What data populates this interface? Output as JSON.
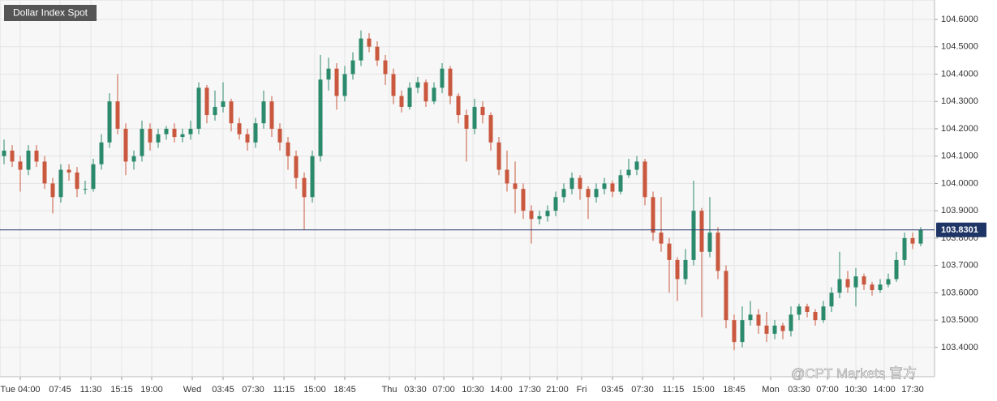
{
  "chart_data": {
    "type": "candlestick",
    "title": "Dollar Index Spot",
    "watermark": "@CPT Markets 官方",
    "up_color": "#2b8a6c",
    "down_color": "#c9583f",
    "grid": true,
    "last_price": 103.8301,
    "open": [
      104.1,
      104.12,
      104.08,
      104.05,
      104.12,
      104.08,
      104.0,
      103.95,
      104.05,
      104.04,
      103.98,
      103.98,
      104.07,
      104.15,
      104.3,
      104.2,
      104.08,
      104.1,
      104.2,
      104.15,
      104.18,
      104.2,
      104.17,
      104.18,
      104.2,
      104.35,
      104.25,
      104.28,
      104.3,
      104.22,
      104.18,
      104.15,
      104.22,
      104.3,
      104.2,
      104.15,
      104.1,
      104.02,
      103.95,
      104.1,
      104.38,
      104.42,
      104.32,
      104.4,
      104.45,
      104.53,
      104.5,
      104.45,
      104.4,
      104.32,
      104.28,
      104.35,
      104.37,
      104.3,
      104.35,
      104.42,
      104.32,
      104.25,
      104.2,
      104.28,
      104.25,
      104.15,
      104.05,
      104.0,
      103.98,
      103.9,
      103.87,
      103.88,
      103.9,
      103.95,
      103.98,
      104.02,
      103.98,
      103.95,
      103.98,
      104.0,
      103.97,
      104.03,
      104.05,
      104.08,
      103.95,
      103.82,
      103.78,
      103.72,
      103.65,
      103.72,
      103.9,
      103.75,
      103.82,
      103.68,
      103.5,
      103.42,
      103.5,
      103.52,
      103.48,
      103.45,
      103.48,
      103.46,
      103.52,
      103.55,
      103.53,
      103.5,
      103.55,
      103.6,
      103.65,
      103.62,
      103.66,
      103.63,
      103.61,
      103.63,
      103.65,
      103.72,
      103.8,
      103.78
    ],
    "high": [
      104.16,
      104.14,
      104.1,
      104.14,
      104.14,
      104.1,
      104.02,
      104.07,
      104.07,
      104.06,
      104.01,
      104.09,
      104.18,
      104.33,
      104.4,
      104.22,
      104.12,
      104.23,
      104.22,
      104.2,
      104.21,
      104.22,
      104.2,
      104.23,
      104.37,
      104.36,
      104.34,
      104.37,
      104.31,
      104.24,
      104.2,
      104.24,
      104.34,
      104.32,
      104.22,
      104.17,
      104.12,
      104.04,
      104.12,
      104.47,
      104.46,
      104.44,
      104.43,
      104.48,
      104.56,
      104.55,
      104.52,
      104.47,
      104.42,
      104.34,
      104.37,
      104.39,
      104.38,
      104.37,
      104.44,
      104.43,
      104.33,
      104.27,
      104.31,
      104.3,
      104.26,
      104.17,
      104.12,
      104.08,
      104.0,
      103.92,
      103.9,
      103.92,
      103.97,
      104.0,
      104.04,
      104.03,
      103.99,
      104.0,
      104.02,
      104.01,
      104.05,
      104.09,
      104.1,
      104.09,
      103.97,
      103.95,
      103.8,
      103.73,
      103.76,
      104.01,
      103.91,
      103.95,
      103.84,
      103.7,
      103.52,
      103.55,
      103.57,
      103.54,
      103.53,
      103.5,
      103.49,
      103.55,
      103.56,
      103.56,
      103.54,
      103.57,
      103.62,
      103.75,
      103.68,
      103.69,
      103.67,
      103.64,
      103.65,
      103.67,
      103.75,
      103.82,
      103.82,
      103.84
    ],
    "low": [
      104.07,
      104.06,
      103.97,
      104.03,
      104.06,
      103.98,
      103.89,
      103.93,
      104.01,
      103.95,
      103.96,
      103.97,
      104.05,
      104.13,
      104.18,
      104.03,
      104.05,
      104.08,
      104.12,
      104.13,
      104.16,
      104.15,
      104.15,
      104.16,
      104.18,
      104.22,
      104.23,
      104.26,
      104.19,
      104.16,
      104.12,
      104.13,
      104.2,
      104.17,
      104.12,
      104.05,
      103.98,
      103.83,
      103.93,
      104.08,
      104.34,
      104.27,
      104.3,
      104.38,
      104.43,
      104.48,
      104.43,
      104.36,
      104.29,
      104.26,
      104.27,
      104.33,
      104.28,
      104.29,
      104.33,
      104.29,
      104.22,
      104.08,
      104.18,
      104.22,
      104.12,
      104.03,
      103.97,
      103.89,
      103.87,
      103.78,
      103.85,
      103.86,
      103.88,
      103.93,
      103.96,
      103.94,
      103.87,
      103.93,
      103.96,
      103.95,
      103.96,
      104.02,
      104.03,
      103.92,
      103.79,
      103.75,
      103.6,
      103.57,
      103.63,
      103.7,
      103.51,
      103.73,
      103.65,
      103.47,
      103.39,
      103.4,
      103.48,
      103.45,
      103.42,
      103.43,
      103.43,
      103.44,
      103.5,
      103.51,
      103.48,
      103.49,
      103.53,
      103.58,
      103.6,
      103.55,
      103.61,
      103.59,
      103.6,
      103.62,
      103.64,
      103.7,
      103.76,
      103.77
    ],
    "close": [
      104.12,
      104.08,
      104.05,
      104.12,
      104.08,
      104.0,
      103.95,
      104.05,
      104.04,
      103.98,
      103.98,
      104.07,
      104.15,
      104.3,
      104.2,
      104.08,
      104.1,
      104.2,
      104.15,
      104.18,
      104.2,
      104.17,
      104.18,
      104.2,
      104.35,
      104.25,
      104.28,
      104.3,
      104.22,
      104.18,
      104.15,
      104.22,
      104.3,
      104.2,
      104.15,
      104.1,
      104.02,
      103.95,
      104.1,
      104.38,
      104.42,
      104.32,
      104.4,
      104.45,
      104.53,
      104.5,
      104.45,
      104.4,
      104.32,
      104.28,
      104.35,
      104.37,
      104.3,
      104.35,
      104.42,
      104.32,
      104.25,
      104.2,
      104.28,
      104.25,
      104.15,
      104.05,
      104.0,
      103.98,
      103.9,
      103.87,
      103.88,
      103.9,
      103.95,
      103.98,
      104.02,
      103.98,
      103.95,
      103.98,
      104.0,
      103.97,
      104.03,
      104.05,
      104.08,
      103.95,
      103.82,
      103.78,
      103.72,
      103.65,
      103.72,
      103.9,
      103.75,
      103.82,
      103.68,
      103.5,
      103.42,
      103.5,
      103.52,
      103.48,
      103.45,
      103.48,
      103.46,
      103.52,
      103.55,
      103.53,
      103.5,
      103.55,
      103.6,
      103.65,
      103.62,
      103.66,
      103.63,
      103.61,
      103.63,
      103.65,
      103.72,
      103.8,
      103.78,
      103.83
    ],
    "ylim": [
      103.293,
      104.671
    ],
    "yticks": [
      {
        "value": 103.4,
        "label": "103.4000"
      },
      {
        "value": 103.5,
        "label": "103.5000"
      },
      {
        "value": 103.6,
        "label": "103.6000"
      },
      {
        "value": 103.7,
        "label": "103.7000"
      },
      {
        "value": 103.8,
        "label": "103.8000"
      },
      {
        "value": 103.9,
        "label": "103.9000"
      },
      {
        "value": 104.0,
        "label": "104.0000"
      },
      {
        "value": 104.1,
        "label": "104.1000"
      },
      {
        "value": 104.2,
        "label": "104.2000"
      },
      {
        "value": 104.3,
        "label": "104.3000"
      },
      {
        "value": 104.4,
        "label": "104.4000"
      },
      {
        "value": 104.5,
        "label": "104.5000"
      },
      {
        "value": 104.6,
        "label": "104.6000"
      }
    ],
    "xlim": [
      0,
      115.2
    ],
    "xticks": [
      {
        "value": 2.5,
        "label": "Tue 04:00"
      },
      {
        "value": 7.4,
        "label": "07:45"
      },
      {
        "value": 11.2,
        "label": "11:30"
      },
      {
        "value": 15.0,
        "label": "15:15"
      },
      {
        "value": 18.7,
        "label": "19:00"
      },
      {
        "value": 23.7,
        "label": "Wed"
      },
      {
        "value": 27.5,
        "label": "03:45"
      },
      {
        "value": 31.2,
        "label": "07:30"
      },
      {
        "value": 35.0,
        "label": "11:15"
      },
      {
        "value": 38.8,
        "label": "15:00"
      },
      {
        "value": 42.5,
        "label": "18:45"
      },
      {
        "value": 48.0,
        "label": "Thu"
      },
      {
        "value": 51.2,
        "label": "03:30"
      },
      {
        "value": 54.7,
        "label": "07:00"
      },
      {
        "value": 58.3,
        "label": "10:30"
      },
      {
        "value": 61.8,
        "label": "14:00"
      },
      {
        "value": 65.3,
        "label": "17:30"
      },
      {
        "value": 68.7,
        "label": "21:00"
      },
      {
        "value": 71.7,
        "label": "Fri"
      },
      {
        "value": 75.5,
        "label": "03:45"
      },
      {
        "value": 79.2,
        "label": "07:30"
      },
      {
        "value": 83.0,
        "label": "11:15"
      },
      {
        "value": 86.7,
        "label": "15:00"
      },
      {
        "value": 90.5,
        "label": "18:45"
      },
      {
        "value": 95.0,
        "label": "Mon"
      },
      {
        "value": 98.5,
        "label": "03:30"
      },
      {
        "value": 102.0,
        "label": "07:00"
      },
      {
        "value": 105.5,
        "label": "10:30"
      },
      {
        "value": 109.0,
        "label": "14:00"
      },
      {
        "value": 112.5,
        "label": "17:30"
      }
    ]
  }
}
